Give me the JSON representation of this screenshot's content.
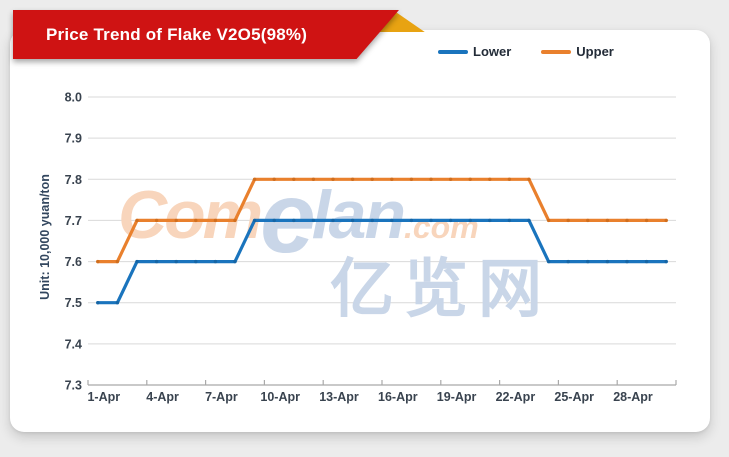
{
  "page": {
    "background": "#ececec",
    "card_background": "#ffffff"
  },
  "banner": {
    "title": "Price Trend of Flake V2O5(98%)",
    "red": "#cf1313",
    "gold": "#e8a312",
    "title_color": "#ffffff"
  },
  "watermark": {
    "part1": "Com",
    "part2": "e",
    "part3": "lan",
    "part4": ".com",
    "part5": "亿览网",
    "peach": "#f8d5bc",
    "blue": "#c9d6e8"
  },
  "chart_data": {
    "type": "line",
    "title": "Price Trend of Flake V2O5(98%)",
    "ylabel": "Unit: 10,000 yuan/ton",
    "xlabel": "",
    "ylim": [
      7.3,
      8.0
    ],
    "ytick_step": 0.1,
    "yticklabels": [
      "8.0",
      "7.9",
      "7.8",
      "7.7",
      "7.6",
      "7.5",
      "7.4",
      "7.3"
    ],
    "categories": [
      "1-Apr",
      "2-Apr",
      "3-Apr",
      "4-Apr",
      "5-Apr",
      "6-Apr",
      "7-Apr",
      "8-Apr",
      "9-Apr",
      "10-Apr",
      "11-Apr",
      "12-Apr",
      "13-Apr",
      "14-Apr",
      "15-Apr",
      "16-Apr",
      "17-Apr",
      "18-Apr",
      "19-Apr",
      "20-Apr",
      "21-Apr",
      "22-Apr",
      "23-Apr",
      "24-Apr",
      "25-Apr",
      "26-Apr",
      "27-Apr",
      "28-Apr",
      "29-Apr",
      "30-Apr"
    ],
    "xticklabels": [
      "1-Apr",
      "4-Apr",
      "7-Apr",
      "10-Apr",
      "13-Apr",
      "16-Apr",
      "19-Apr",
      "22-Apr",
      "25-Apr",
      "28-Apr"
    ],
    "xtick_every": 3,
    "grid": true,
    "legend_position": "top",
    "series": [
      {
        "name": "Lower",
        "color": "#1a74bd",
        "marker_color": "#1565a5",
        "values": [
          7.5,
          7.5,
          7.6,
          7.6,
          7.6,
          7.6,
          7.6,
          7.6,
          7.7,
          7.7,
          7.7,
          7.7,
          7.7,
          7.7,
          7.7,
          7.7,
          7.7,
          7.7,
          7.7,
          7.7,
          7.7,
          7.7,
          7.7,
          7.6,
          7.6,
          7.6,
          7.6,
          7.6,
          7.6,
          7.6
        ]
      },
      {
        "name": "Upper",
        "color": "#e9802d",
        "marker_color": "#d06e1e",
        "values": [
          7.6,
          7.6,
          7.7,
          7.7,
          7.7,
          7.7,
          7.7,
          7.7,
          7.8,
          7.8,
          7.8,
          7.8,
          7.8,
          7.8,
          7.8,
          7.8,
          7.8,
          7.8,
          7.8,
          7.8,
          7.8,
          7.8,
          7.8,
          7.7,
          7.7,
          7.7,
          7.7,
          7.7,
          7.7,
          7.7
        ]
      }
    ],
    "style": {
      "grid_color": "#d9d9d9",
      "axis_color": "#a9a9a9",
      "tick_label_color": "#39434f",
      "unit_label_color": "#32465e"
    }
  }
}
